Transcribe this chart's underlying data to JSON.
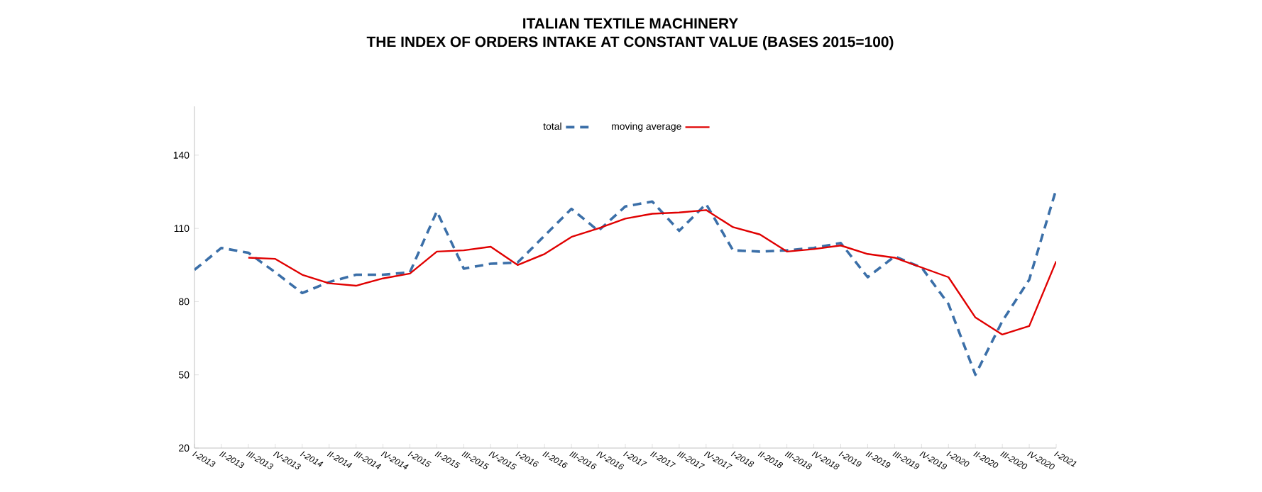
{
  "chart_data": {
    "type": "line",
    "title": "ITALIAN TEXTILE MACHINERY",
    "subtitle": "THE INDEX OF ORDERS INTAKE AT CONSTANT VALUE (BASES 2015=100)",
    "categories": [
      "I-2013",
      "II-2013",
      "III-2013",
      "IV-2013",
      "I-2014",
      "II-2014",
      "III-2014",
      "IV-2014",
      "I-2015",
      "II-2015",
      "III-2015",
      "IV-2015",
      "I-2016",
      "II-2016",
      "III-2016",
      "IV-2016",
      "I-2017",
      "II-2017",
      "III-2017",
      "IV-2017",
      "I-2018",
      "II-2018",
      "III-2018",
      "IV-2018",
      "I-2019",
      "II-2019",
      "III-2019",
      "IV-2019",
      "I-2020",
      "II-2020",
      "III-2020",
      "IV-2020",
      "I-2021"
    ],
    "series": [
      {
        "name": "total",
        "color": "#3b6fa8",
        "line_style": "dashed",
        "values": [
          93,
          102,
          100,
          92,
          83.5,
          88,
          91,
          91,
          92,
          117,
          93.5,
          95.5,
          96,
          107,
          118,
          109,
          119,
          121,
          109,
          120,
          101,
          100.5,
          101,
          102,
          104,
          90,
          98.5,
          94,
          79,
          50,
          72,
          89,
          126
        ]
      },
      {
        "name": "moving average",
        "color": "#e00000",
        "line_style": "solid",
        "values": [
          null,
          null,
          98,
          97.5,
          91,
          87.5,
          86.5,
          89.5,
          91.5,
          100.5,
          101,
          102.5,
          95,
          99.5,
          106.5,
          110,
          114,
          116,
          116.5,
          117.5,
          110.5,
          107.5,
          100.5,
          101.5,
          103,
          99.5,
          98,
          94,
          90,
          73.5,
          66.5,
          70,
          96.5
        ]
      }
    ],
    "ylim": [
      20,
      160
    ],
    "yticks": [
      20,
      50,
      80,
      110,
      140
    ],
    "grid": false,
    "legend": "top",
    "marker": "none"
  }
}
